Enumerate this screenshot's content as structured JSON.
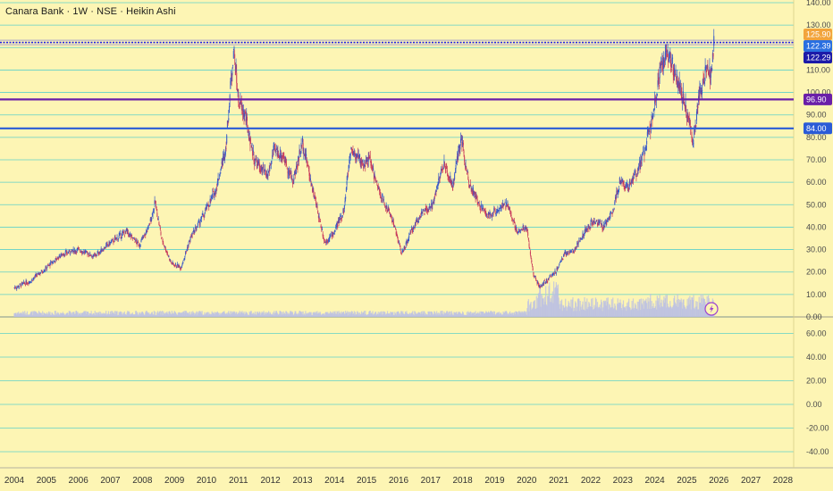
{
  "chart_data": {
    "type": "candlestick",
    "title": "Canara Bank · 1W · NSE · Heikin Ashi",
    "price_axis": {
      "ylim": [
        0,
        140
      ],
      "ticks": [
        0,
        10,
        20,
        30,
        40,
        50,
        60,
        70,
        80,
        90,
        100,
        110,
        120,
        130,
        140
      ],
      "tick_labels": [
        "0.00",
        "10.00",
        "20.00",
        "30.00",
        "40.00",
        "50.00",
        "60.00",
        "70.00",
        "80.00",
        "90.00",
        "100.00",
        "110.00",
        "120.00",
        "130.00",
        "140.00"
      ]
    },
    "osc_axis": {
      "ylim": [
        -50,
        70
      ],
      "ticks": [
        -40,
        -20,
        0,
        20,
        40,
        60
      ],
      "tick_labels": [
        "-40.00",
        "-20.00",
        "0.00",
        "20.00",
        "40.00",
        "60.00"
      ]
    },
    "x_axis": {
      "range": [
        2003.8,
        2028.6
      ],
      "ticks": [
        2004,
        2005,
        2006,
        2007,
        2008,
        2009,
        2010,
        2011,
        2012,
        2013,
        2014,
        2015,
        2016,
        2017,
        2018,
        2019,
        2020,
        2021,
        2022,
        2023,
        2024,
        2025,
        2026,
        2027,
        2028
      ],
      "tick_labels": [
        "2004",
        "2005",
        "2006",
        "2007",
        "2008",
        "2009",
        "2010",
        "2011",
        "2012",
        "2013",
        "2014",
        "2015",
        "2016",
        "2017",
        "2018",
        "2019",
        "2020",
        "2021",
        "2022",
        "2023",
        "2024",
        "2025",
        "2026",
        "2027",
        "2028"
      ]
    },
    "price_path": [
      [
        2004.0,
        13
      ],
      [
        2004.5,
        16
      ],
      [
        2005.0,
        22
      ],
      [
        2005.5,
        28
      ],
      [
        2006.0,
        30
      ],
      [
        2006.5,
        27
      ],
      [
        2007.0,
        33
      ],
      [
        2007.5,
        38
      ],
      [
        2007.9,
        32
      ],
      [
        2008.2,
        40
      ],
      [
        2008.4,
        51
      ],
      [
        2008.6,
        35
      ],
      [
        2008.9,
        24
      ],
      [
        2009.2,
        22
      ],
      [
        2009.5,
        35
      ],
      [
        2009.9,
        45
      ],
      [
        2010.3,
        57
      ],
      [
        2010.6,
        75
      ],
      [
        2010.85,
        120
      ],
      [
        2011.0,
        96
      ],
      [
        2011.2,
        90
      ],
      [
        2011.5,
        70
      ],
      [
        2011.9,
        62
      ],
      [
        2012.1,
        74
      ],
      [
        2012.4,
        72
      ],
      [
        2012.7,
        60
      ],
      [
        2013.0,
        78
      ],
      [
        2013.3,
        58
      ],
      [
        2013.7,
        33
      ],
      [
        2014.0,
        38
      ],
      [
        2014.3,
        48
      ],
      [
        2014.5,
        75
      ],
      [
        2014.9,
        68
      ],
      [
        2015.1,
        70
      ],
      [
        2015.4,
        55
      ],
      [
        2015.8,
        44
      ],
      [
        2016.1,
        28
      ],
      [
        2016.4,
        38
      ],
      [
        2016.7,
        46
      ],
      [
        2017.0,
        48
      ],
      [
        2017.4,
        68
      ],
      [
        2017.7,
        58
      ],
      [
        2017.95,
        80
      ],
      [
        2018.2,
        60
      ],
      [
        2018.5,
        50
      ],
      [
        2018.8,
        45
      ],
      [
        2019.1,
        48
      ],
      [
        2019.4,
        50
      ],
      [
        2019.7,
        38
      ],
      [
        2020.0,
        40
      ],
      [
        2020.2,
        20
      ],
      [
        2020.4,
        13
      ],
      [
        2020.6,
        16
      ],
      [
        2020.9,
        20
      ],
      [
        2021.2,
        28
      ],
      [
        2021.5,
        30
      ],
      [
        2021.8,
        38
      ],
      [
        2022.1,
        43
      ],
      [
        2022.4,
        40
      ],
      [
        2022.7,
        48
      ],
      [
        2022.9,
        60
      ],
      [
        2023.2,
        58
      ],
      [
        2023.6,
        70
      ],
      [
        2023.95,
        90
      ],
      [
        2024.2,
        112
      ],
      [
        2024.45,
        117
      ],
      [
        2024.7,
        105
      ],
      [
        2024.95,
        95
      ],
      [
        2025.2,
        78
      ],
      [
        2025.4,
        100
      ],
      [
        2025.6,
        110
      ],
      [
        2025.75,
        107
      ],
      [
        2025.85,
        122
      ]
    ],
    "price_levels": [
      {
        "value": 122.29,
        "label": "122.29",
        "color": "#1f1ee8",
        "style": "dotted"
      },
      {
        "value": 96.9,
        "label": "96.90",
        "color": "#6a1fa8",
        "style": "solid"
      },
      {
        "value": 84.0,
        "label": "84.00",
        "color": "#2a5bd7",
        "style": "solid"
      }
    ],
    "price_badges": [
      {
        "value": 125.9,
        "label": "125.90",
        "color": "#f2a43c"
      },
      {
        "value": 122.39,
        "label": "122.39",
        "color": "#2a6fe0"
      },
      {
        "value": 122.29,
        "label": "122.29",
        "color": "#1c1aa8"
      },
      {
        "value": 96.9,
        "label": "96.90",
        "color": "#6a1fa8"
      },
      {
        "value": 84.0,
        "label": "84.00",
        "color": "#2a5bd7"
      }
    ],
    "up_color": "#3557c8",
    "down_color": "#c8385a",
    "volume_color": "#b8bde6",
    "grid": true,
    "legend": "none"
  },
  "icons": {
    "lightning": "lightning-icon"
  }
}
